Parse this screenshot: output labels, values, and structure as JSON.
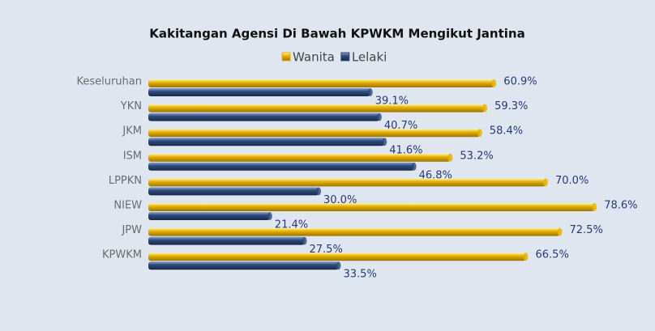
{
  "chart_data": {
    "type": "hbar",
    "title": "Kakitangan Agensi Di Bawah KPWKM Mengikut Jantina",
    "categories": [
      "Keseluruhan",
      "YKN",
      "JKM",
      "ISM",
      "LPPKN",
      "NIEW",
      "JPW",
      "KPWKM"
    ],
    "series": [
      {
        "name": "Wanita",
        "color": "#e6b100",
        "values": [
          60.9,
          59.3,
          58.4,
          53.2,
          70.0,
          78.6,
          72.5,
          66.5
        ],
        "value_labels": [
          "60.9%",
          "59.3%",
          "58.4%",
          "53.2%",
          "70.0%",
          "78.6%",
          "72.5%",
          "66.5%"
        ]
      },
      {
        "name": "Lelaki",
        "color": "#2f4b7c",
        "values": [
          39.1,
          40.7,
          41.6,
          46.8,
          30.0,
          21.4,
          27.5,
          33.5
        ],
        "value_labels": [
          "39.1%",
          "40.7%",
          "41.6%",
          "46.8%",
          "30.0%",
          "21.4%",
          "27.5%",
          "33.5%"
        ]
      }
    ],
    "xlim": [
      0,
      100
    ],
    "legend": "top"
  }
}
